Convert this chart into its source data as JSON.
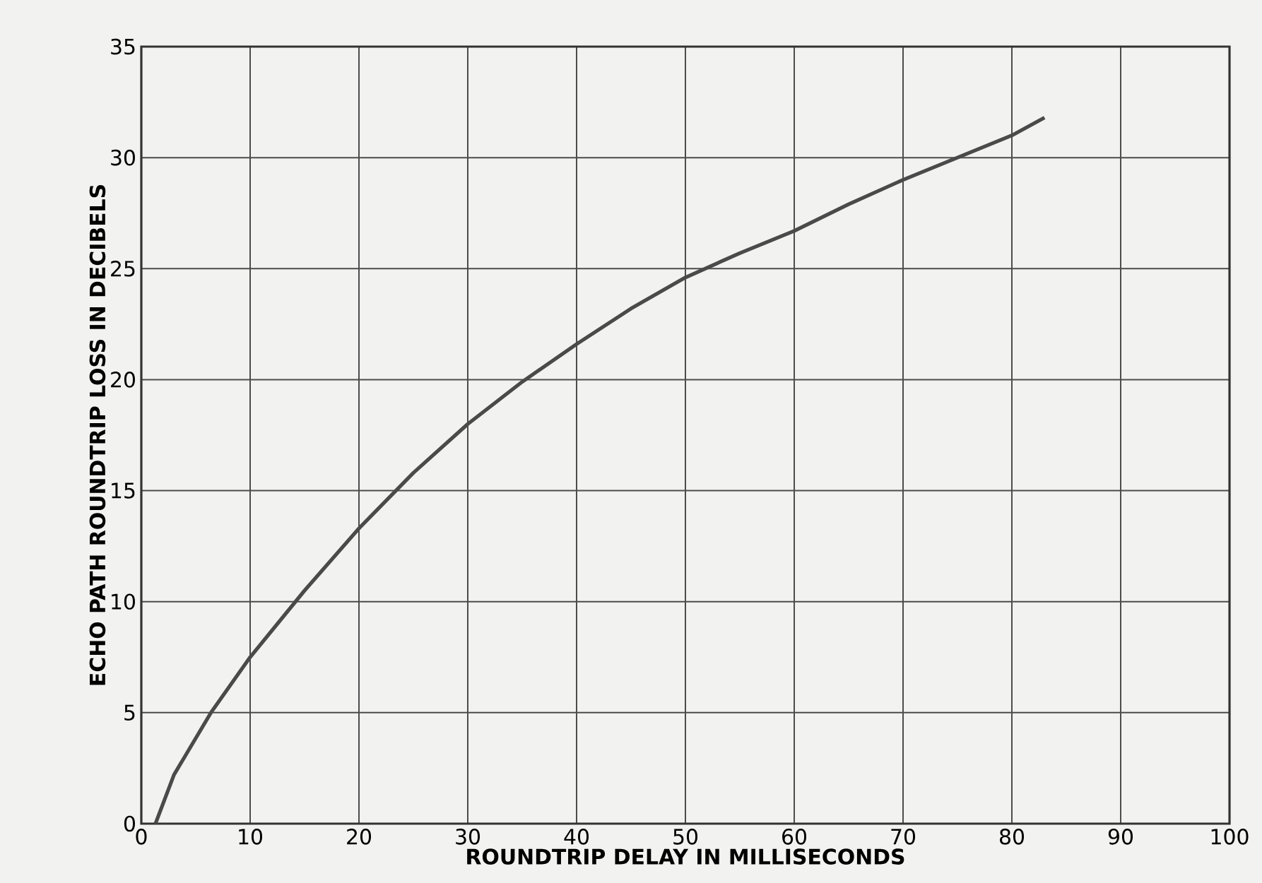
{
  "chart_data": {
    "type": "line",
    "xlabel": "ROUNDTRIP DELAY IN MILLISECONDS",
    "ylabel": "ECHO PATH ROUNDTRIP LOSS IN DECIBELS",
    "x": [
      1.3,
      3,
      6.4,
      10,
      15,
      20,
      25,
      30,
      35,
      40,
      45,
      50,
      55,
      60,
      65,
      70,
      75,
      80,
      83
    ],
    "series": [
      {
        "color": "#4a4a4a",
        "values": [
          0,
          2.2,
          5,
          7.5,
          10.5,
          13.3,
          15.8,
          18.0,
          19.9,
          21.6,
          23.2,
          24.6,
          25.7,
          26.7,
          27.9,
          29.0,
          30.0,
          31.0,
          31.8
        ]
      }
    ],
    "xlim": [
      0,
      100
    ],
    "ylim": [
      0,
      35
    ],
    "xticks": [
      0,
      10,
      20,
      30,
      40,
      50,
      60,
      70,
      80,
      90,
      100
    ],
    "yticks": [
      0,
      5,
      10,
      15,
      20,
      25,
      30,
      35
    ],
    "grid": true,
    "legend": false,
    "marker": "none",
    "line_style": "solid"
  }
}
